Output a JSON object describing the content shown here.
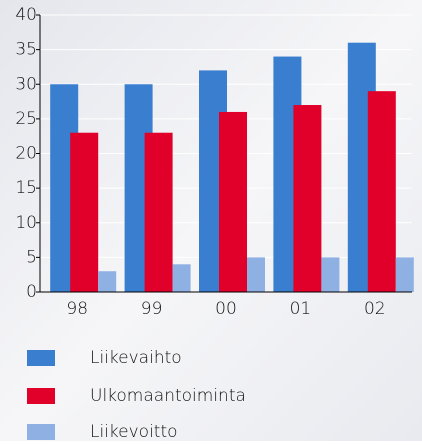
{
  "chart_data": {
    "type": "bar",
    "categories": [
      "98",
      "99",
      "00",
      "01",
      "02"
    ],
    "series": [
      {
        "name": "Liikevaihto",
        "color": "#3a7fcf",
        "values": [
          30,
          30,
          32,
          34,
          36
        ]
      },
      {
        "name": "Ulkomaantoiminta",
        "color": "#e0002a",
        "values": [
          23,
          23,
          26,
          27,
          29
        ]
      },
      {
        "name": "Liikevoitto",
        "color": "#8fb0e2",
        "values": [
          3,
          4,
          5,
          5,
          5
        ]
      }
    ],
    "ylim": [
      0,
      40
    ],
    "yticks": [
      0,
      5,
      10,
      15,
      20,
      25,
      30,
      35,
      40
    ],
    "grid": true
  }
}
